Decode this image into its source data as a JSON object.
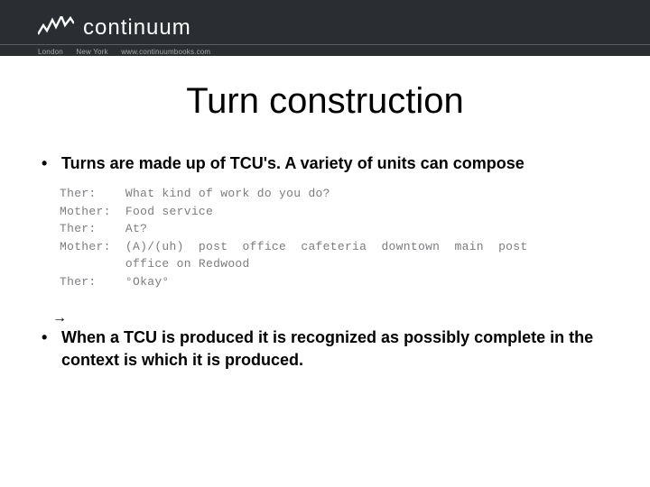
{
  "header": {
    "brand_name": "continuum",
    "cities": [
      "London",
      "New York"
    ],
    "url": "www.continuumbooks.com",
    "bg_color": "#2a2d32",
    "text_color": "#ffffff"
  },
  "title": "Turn construction",
  "bullets": [
    "Turns are made up of TCU's. A variety of units can compose",
    "When a TCU is produced it is recognized as possibly complete in the context is which it is produced."
  ],
  "transcript": {
    "arrow_glyph": "→",
    "lines": [
      {
        "speaker": "Ther:",
        "text": "What kind of work do you do?"
      },
      {
        "speaker": "Mother:",
        "text": "Food service"
      },
      {
        "speaker": "Ther:",
        "text": "At?"
      },
      {
        "speaker": "Mother:",
        "text": "(A)/(uh)  post  office  cafeteria  downtown  main  post"
      },
      {
        "speaker": "",
        "text": "office on Redwood"
      },
      {
        "speaker": "Ther:",
        "text": "°Okay°"
      }
    ],
    "speaker_col_width": 9,
    "arrow_line_index": 2
  },
  "colors": {
    "background": "#ffffff",
    "title_color": "#000000",
    "bullet_color": "#000000",
    "transcript_color": "#7b7d82"
  },
  "fonts": {
    "title_size": 40,
    "bullet_size": 18,
    "transcript_size": 13
  }
}
